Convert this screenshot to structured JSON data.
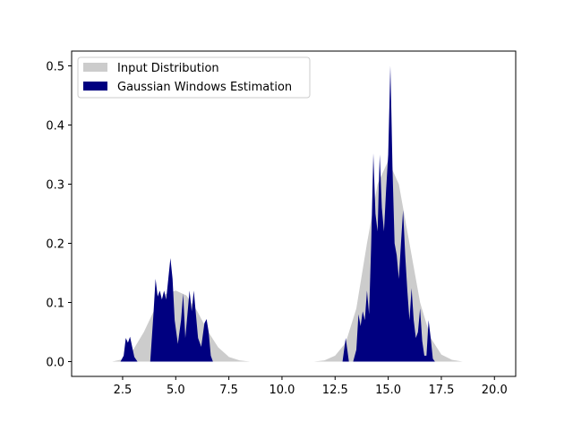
{
  "chart_data": {
    "type": "area",
    "title": "",
    "xlabel": "",
    "ylabel": "",
    "xlim": [
      0.1,
      21.0
    ],
    "ylim": [
      -0.025,
      0.525
    ],
    "x_ticks": [
      2.5,
      5.0,
      7.5,
      10.0,
      12.5,
      15.0,
      17.5,
      20.0
    ],
    "x_tick_labels": [
      "2.5",
      "5.0",
      "7.5",
      "10.0",
      "12.5",
      "15.0",
      "17.5",
      "20.0"
    ],
    "y_ticks": [
      0.0,
      0.1,
      0.2,
      0.3,
      0.4,
      0.5
    ],
    "y_tick_labels": [
      "0.0",
      "0.1",
      "0.2",
      "0.3",
      "0.4",
      "0.5"
    ],
    "grid": false,
    "legend": "top-left",
    "series": [
      {
        "name": "Input Distribution",
        "color": "#cccccc",
        "x": [
          1.5,
          2.0,
          2.5,
          3.0,
          3.5,
          4.0,
          4.5,
          5.0,
          5.5,
          6.0,
          6.5,
          7.0,
          7.5,
          8.0,
          8.5,
          9.0,
          9.5,
          10.0,
          10.5,
          11.0,
          11.5,
          12.0,
          12.5,
          13.0,
          13.5,
          14.0,
          14.5,
          15.0,
          15.5,
          16.0,
          16.5,
          17.0,
          17.5,
          18.0,
          18.5,
          19.0
        ],
        "y": [
          0.0,
          0.0,
          0.004,
          0.02,
          0.05,
          0.088,
          0.114,
          0.12,
          0.112,
          0.086,
          0.052,
          0.024,
          0.008,
          0.002,
          0.0,
          0.0,
          0.0,
          0.0,
          0.0,
          0.0,
          0.0,
          0.002,
          0.01,
          0.032,
          0.09,
          0.2,
          0.3,
          0.34,
          0.3,
          0.2,
          0.1,
          0.04,
          0.012,
          0.003,
          0.0,
          0.0
        ]
      },
      {
        "name": "Gaussian Windows Estimation",
        "color": "#000080",
        "x": [
          2.4,
          2.55,
          2.65,
          2.75,
          2.85,
          2.95,
          3.05,
          3.2,
          3.35,
          3.8,
          3.95,
          4.05,
          4.15,
          4.25,
          4.35,
          4.45,
          4.55,
          4.65,
          4.75,
          4.85,
          4.95,
          5.1,
          5.25,
          5.35,
          5.45,
          5.55,
          5.65,
          5.75,
          5.85,
          5.95,
          6.05,
          6.2,
          6.35,
          6.45,
          6.55,
          6.65,
          6.75,
          6.9,
          12.7,
          12.85,
          13.0,
          13.15,
          13.35,
          13.5,
          13.6,
          13.7,
          13.8,
          13.9,
          14.0,
          14.1,
          14.2,
          14.3,
          14.4,
          14.5,
          14.6,
          14.7,
          14.8,
          14.9,
          15.0,
          15.1,
          15.15,
          15.2,
          15.3,
          15.4,
          15.5,
          15.6,
          15.7,
          15.8,
          15.9,
          16.0,
          16.1,
          16.2,
          16.3,
          16.4,
          16.5,
          16.6,
          16.7,
          16.8,
          16.9,
          17.0,
          17.1,
          17.2,
          17.3,
          17.45
        ],
        "y": [
          0.0,
          0.01,
          0.04,
          0.032,
          0.042,
          0.025,
          0.008,
          0.0,
          0.0,
          0.0,
          0.08,
          0.14,
          0.11,
          0.12,
          0.105,
          0.12,
          0.105,
          0.14,
          0.175,
          0.14,
          0.07,
          0.03,
          0.07,
          0.115,
          0.04,
          0.08,
          0.12,
          0.085,
          0.12,
          0.08,
          0.04,
          0.025,
          0.065,
          0.072,
          0.05,
          0.01,
          0.0,
          0.0,
          0.0,
          0.0,
          0.04,
          0.0,
          0.0,
          0.02,
          0.08,
          0.06,
          0.085,
          0.07,
          0.12,
          0.08,
          0.2,
          0.352,
          0.25,
          0.22,
          0.35,
          0.26,
          0.22,
          0.29,
          0.35,
          0.5,
          0.42,
          0.33,
          0.2,
          0.18,
          0.14,
          0.2,
          0.256,
          0.18,
          0.12,
          0.07,
          0.124,
          0.07,
          0.04,
          0.05,
          0.09,
          0.035,
          0.01,
          0.01,
          0.07,
          0.04,
          0.005,
          0.0,
          0.0,
          0.0
        ]
      }
    ]
  }
}
